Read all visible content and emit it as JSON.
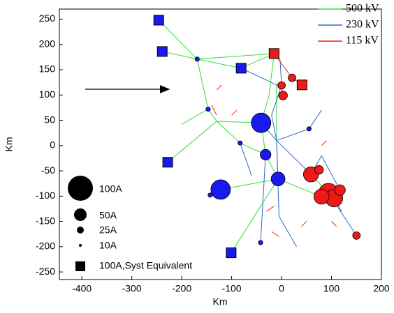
{
  "chart_data": {
    "type": "network",
    "x_label": "Km",
    "y_label": "Km",
    "xlim": [
      -445,
      200
    ],
    "ylim": [
      -265,
      270
    ],
    "xticks": [
      -400,
      -300,
      -200,
      -100,
      0,
      100,
      200
    ],
    "yticks": [
      -250,
      -200,
      -150,
      -100,
      -50,
      0,
      50,
      100,
      150,
      200,
      250
    ],
    "series": [
      {
        "name": "500 kV",
        "color": "#33dd33",
        "segments": [
          [
            -246,
            248,
            -169,
            171
          ],
          [
            -239,
            186,
            -169,
            171
          ],
          [
            -169,
            171,
            -81,
            153
          ],
          [
            -81,
            153,
            -15,
            182
          ],
          [
            -169,
            171,
            -15,
            182
          ],
          [
            -169,
            171,
            -147,
            72
          ],
          [
            -147,
            72,
            -200,
            42
          ],
          [
            -147,
            72,
            -130,
            48
          ],
          [
            -130,
            48,
            -228,
            -33
          ],
          [
            -130,
            48,
            -41,
            45
          ],
          [
            -41,
            45,
            -32,
            -18
          ],
          [
            -130,
            48,
            -83,
            5
          ],
          [
            -83,
            5,
            -32,
            -18
          ],
          [
            -32,
            -18,
            -7,
            -66
          ],
          [
            -7,
            -66,
            -122,
            -87
          ],
          [
            -7,
            -66,
            80,
            -101
          ],
          [
            -7,
            -66,
            -101,
            -212
          ],
          [
            -15,
            182,
            -25,
            100
          ],
          [
            -25,
            100,
            -41,
            45
          ],
          [
            -10,
            120,
            -10,
            10
          ],
          [
            -10,
            10,
            -7,
            -66
          ],
          [
            59,
            -57,
            94,
            -94
          ]
        ]
      },
      {
        "name": "230 kV",
        "color": "#3366cc",
        "segments": [
          [
            -41,
            45,
            -10,
            10
          ],
          [
            -10,
            10,
            55,
            33
          ],
          [
            -10,
            10,
            59,
            -57
          ],
          [
            94,
            -94,
            150,
            -178
          ],
          [
            -32,
            -18,
            -42,
            -192
          ],
          [
            -81,
            153,
            -10,
            120
          ],
          [
            -10,
            120,
            0,
            119
          ],
          [
            -143,
            -98,
            -122,
            -87
          ],
          [
            59,
            -57,
            80,
            -20
          ],
          [
            80,
            -20,
            117,
            -88
          ],
          [
            -83,
            5,
            -60,
            -60
          ],
          [
            -10,
            10,
            -5,
            -140
          ],
          [
            -5,
            -140,
            30,
            -200
          ],
          [
            105,
            -104,
            120,
            -130
          ],
          [
            -15,
            182,
            -3,
            170
          ],
          [
            -3,
            170,
            0,
            119
          ],
          [
            0,
            119,
            -20,
            60
          ],
          [
            -20,
            60,
            -10,
            10
          ],
          [
            55,
            33,
            80,
            70
          ]
        ]
      },
      {
        "name": "115 kV",
        "color": "#ee2222",
        "segments": [
          [
            -15,
            182,
            21,
            134
          ],
          [
            21,
            134,
            41,
            120
          ],
          [
            0,
            119,
            3,
            99
          ],
          [
            -130,
            110,
            -120,
            120
          ],
          [
            -140,
            80,
            -130,
            60
          ],
          [
            -100,
            60,
            -90,
            70
          ],
          [
            100,
            -150,
            110,
            -160
          ],
          [
            -30,
            -130,
            -15,
            -120
          ],
          [
            40,
            -160,
            50,
            -150
          ],
          [
            -20,
            -170,
            -5,
            -180
          ],
          [
            80,
            0,
            90,
            10
          ]
        ]
      }
    ],
    "buses": {
      "x": [
        -122,
        -41,
        -32,
        -7,
        -169,
        -147,
        -83,
        -143,
        55,
        -42,
        59,
        94,
        105,
        80,
        117,
        75,
        150,
        3,
        21,
        0
      ],
      "y": [
        -87,
        45,
        -18,
        -66,
        171,
        72,
        5,
        -98,
        33,
        -192,
        -57,
        -94,
        -104,
        -101,
        -88,
        -48,
        -178,
        99,
        134,
        119
      ],
      "size": [
        100,
        100,
        30,
        50,
        5,
        5,
        5,
        5,
        5,
        5,
        60,
        100,
        80,
        60,
        30,
        20,
        15,
        20,
        15,
        15
      ],
      "colors": [
        "#1a1aee",
        "#1a1aee",
        "#1a1aee",
        "#1a1aee",
        "#1a1aee",
        "#1a1aee",
        "#1a1aee",
        "#1a1aee",
        "#1a1aee",
        "#1a1aee",
        "#ee1a1a",
        "#ee1a1a",
        "#ee1a1a",
        "#ee1a1a",
        "#ee1a1a",
        "#ee1a1a",
        "#ee1a1a",
        "#ee1a1a",
        "#ee1a1a",
        "#ee1a1a"
      ]
    },
    "equivalents": {
      "x": [
        -246,
        -239,
        -81,
        -228,
        -101,
        -15,
        41
      ],
      "y": [
        248,
        186,
        153,
        -33,
        -212,
        182,
        120
      ],
      "colors": [
        "#1a1aee",
        "#1a1aee",
        "#1a1aee",
        "#1a1aee",
        "#1a1aee",
        "#ee1a1a",
        "#ee1a1a"
      ]
    },
    "size_legend": [
      "100A",
      "50A",
      "25A",
      "10A",
      "100A,Syst Equivalent"
    ]
  }
}
